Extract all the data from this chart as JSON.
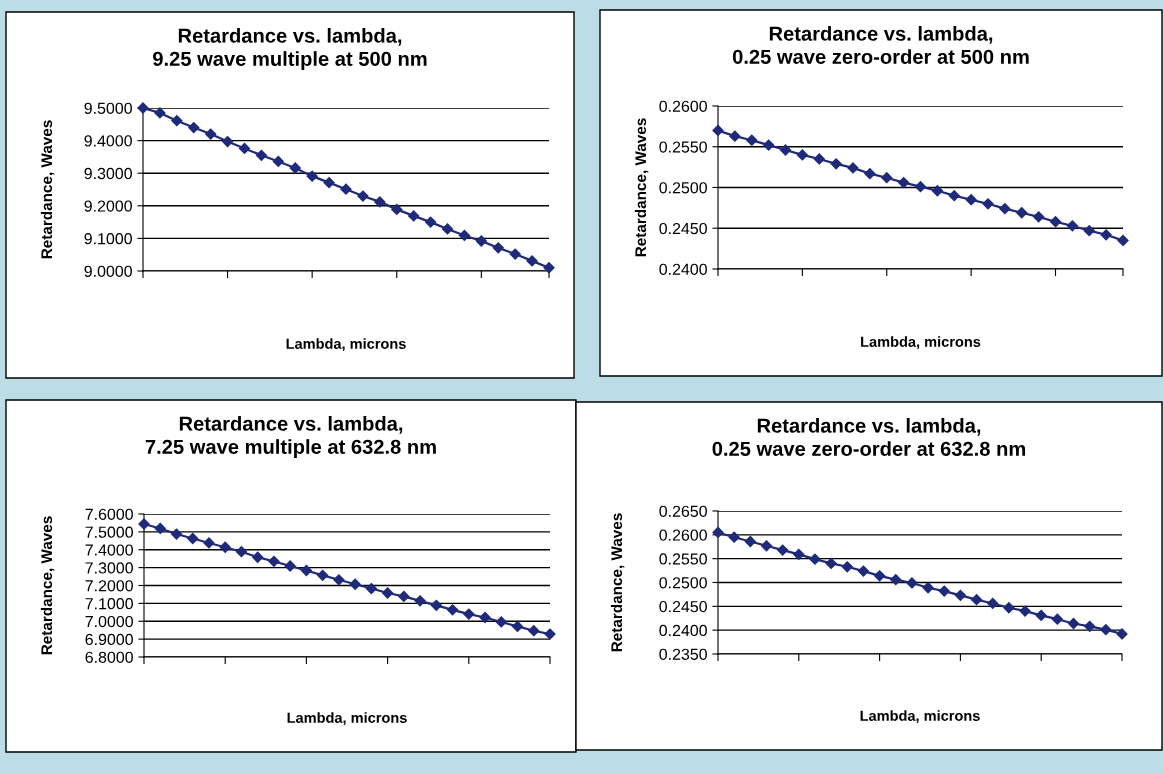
{
  "chart_data": [
    {
      "type": "line",
      "title": "Retardance vs. lambda,\n9.25 wave multiple at 500 nm",
      "xlabel": "Lambda, microns",
      "ylabel": "Retardance, Waves",
      "categories": [
        null,
        null,
        null,
        null,
        null,
        null,
        null,
        null,
        null,
        null,
        null,
        null,
        null,
        null,
        null,
        null,
        null,
        null,
        null,
        null,
        null,
        null,
        null,
        null,
        null
      ],
      "ylim": [
        9.0,
        9.5
      ],
      "yticks": [
        {
          "value": 9.0,
          "label": "9.0000"
        },
        {
          "value": 9.1,
          "label": "9.1000"
        },
        {
          "value": 9.2,
          "label": "9.2000"
        },
        {
          "value": 9.3,
          "label": "9.3000"
        },
        {
          "value": 9.4,
          "label": "9.4000"
        },
        {
          "value": 9.5,
          "label": "9.5000"
        }
      ],
      "grid": "y",
      "marker": "diamond",
      "line_style": "solid",
      "series": [
        {
          "color": "#1f2a7a",
          "values": [
            9.5,
            9.485,
            9.461,
            9.44,
            9.42,
            9.397,
            9.376,
            9.355,
            9.336,
            9.316,
            9.291,
            9.271,
            9.251,
            9.23,
            9.212,
            9.189,
            9.169,
            9.15,
            9.129,
            9.109,
            9.092,
            9.071,
            9.052,
            9.031,
            9.01
          ]
        }
      ]
    },
    {
      "type": "line",
      "title": "Retardance vs. lambda,\n0.25 wave zero-order at 500 nm",
      "xlabel": "Lambda, microns",
      "ylabel": "Retardance, Waves",
      "categories": [
        null,
        null,
        null,
        null,
        null,
        null,
        null,
        null,
        null,
        null,
        null,
        null,
        null,
        null,
        null,
        null,
        null,
        null,
        null,
        null,
        null,
        null,
        null,
        null,
        null
      ],
      "ylim": [
        0.24,
        0.26
      ],
      "yticks": [
        {
          "value": 0.24,
          "label": "0.2400"
        },
        {
          "value": 0.245,
          "label": "0.2450"
        },
        {
          "value": 0.25,
          "label": "0.2500"
        },
        {
          "value": 0.255,
          "label": "0.2550"
        },
        {
          "value": 0.26,
          "label": "0.2600"
        }
      ],
      "grid": "y",
      "marker": "diamond",
      "line_style": "solid",
      "series": [
        {
          "color": "#1f2a7a",
          "values": [
            0.257,
            0.2563,
            0.2558,
            0.2552,
            0.2546,
            0.254,
            0.2535,
            0.2529,
            0.2524,
            0.2517,
            0.2512,
            0.2506,
            0.2501,
            0.2496,
            0.249,
            0.2485,
            0.248,
            0.2474,
            0.2469,
            0.2464,
            0.2458,
            0.2453,
            0.2447,
            0.2442,
            0.2435
          ]
        }
      ]
    },
    {
      "type": "line",
      "title": "Retardance vs. lambda,\n7.25 wave multiple at 632.8 nm",
      "xlabel": "Lambda, microns",
      "ylabel": "Retardance, Waves",
      "categories": [
        null,
        null,
        null,
        null,
        null,
        null,
        null,
        null,
        null,
        null,
        null,
        null,
        null,
        null,
        null,
        null,
        null,
        null,
        null,
        null,
        null,
        null,
        null,
        null,
        null,
        null
      ],
      "ylim": [
        6.8,
        7.6
      ],
      "yticks": [
        {
          "value": 6.8,
          "label": "6.8000"
        },
        {
          "value": 6.9,
          "label": "6.9000"
        },
        {
          "value": 7.0,
          "label": "7.0000"
        },
        {
          "value": 7.1,
          "label": "7.1000"
        },
        {
          "value": 7.2,
          "label": "7.2000"
        },
        {
          "value": 7.3,
          "label": "7.3000"
        },
        {
          "value": 7.4,
          "label": "7.4000"
        },
        {
          "value": 7.5,
          "label": "7.5000"
        },
        {
          "value": 7.6,
          "label": "7.6000"
        }
      ],
      "grid": "y",
      "marker": "diamond",
      "line_style": "solid",
      "series": [
        {
          "color": "#1f2a7a",
          "values": [
            7.544,
            7.519,
            7.488,
            7.463,
            7.438,
            7.414,
            7.389,
            7.358,
            7.335,
            7.309,
            7.284,
            7.257,
            7.232,
            7.207,
            7.183,
            7.158,
            7.139,
            7.114,
            7.089,
            7.064,
            7.04,
            7.021,
            6.996,
            6.971,
            6.947,
            6.928
          ]
        }
      ]
    },
    {
      "type": "line",
      "title": "Retardance vs. lambda,\n0.25 wave zero-order at 632.8 nm",
      "xlabel": "Lambda, microns",
      "ylabel": "Retardance, Waves",
      "categories": [
        null,
        null,
        null,
        null,
        null,
        null,
        null,
        null,
        null,
        null,
        null,
        null,
        null,
        null,
        null,
        null,
        null,
        null,
        null,
        null,
        null,
        null,
        null,
        null,
        null,
        null
      ],
      "ylim": [
        0.235,
        0.265
      ],
      "yticks": [
        {
          "value": 0.235,
          "label": "0.2350"
        },
        {
          "value": 0.24,
          "label": "0.2400"
        },
        {
          "value": 0.245,
          "label": "0.2450"
        },
        {
          "value": 0.25,
          "label": "0.2500"
        },
        {
          "value": 0.255,
          "label": "0.2550"
        },
        {
          "value": 0.26,
          "label": "0.2600"
        },
        {
          "value": 0.265,
          "label": "0.2650"
        }
      ],
      "grid": "y",
      "marker": "diamond",
      "line_style": "solid",
      "series": [
        {
          "color": "#1f2a7a",
          "values": [
            0.2605,
            0.2595,
            0.2586,
            0.2577,
            0.2568,
            0.2559,
            0.2549,
            0.254,
            0.2533,
            0.2524,
            0.2514,
            0.2506,
            0.2499,
            0.2489,
            0.2482,
            0.2473,
            0.2464,
            0.2456,
            0.2447,
            0.244,
            0.2431,
            0.2423,
            0.2414,
            0.2408,
            0.2401,
            0.2392
          ]
        }
      ]
    }
  ]
}
